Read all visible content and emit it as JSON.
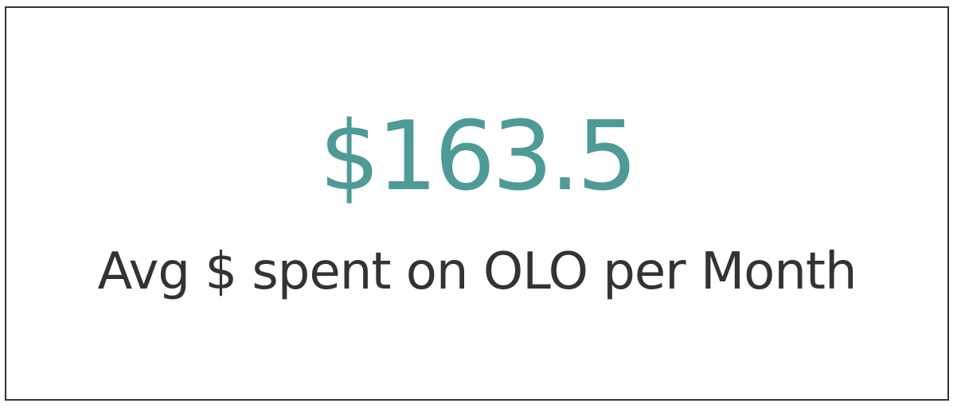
{
  "chart_data": {
    "type": "table",
    "value": 163.5,
    "value_text": "$163.5",
    "label": "Avg $ spent on OLO per Month",
    "colors": {
      "value": "#4e9a96",
      "label": "#333333",
      "border": "#333333",
      "background": "#ffffff"
    }
  }
}
